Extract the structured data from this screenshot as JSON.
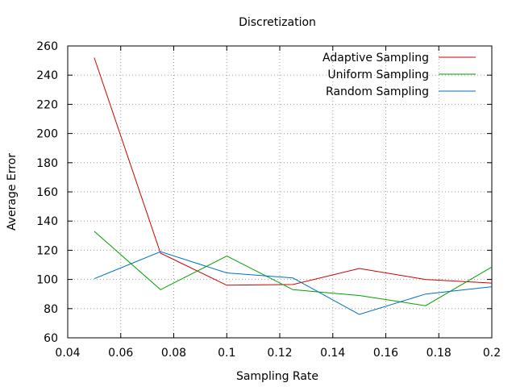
{
  "chart_data": {
    "type": "line",
    "title": "Discretization",
    "xlabel": "Sampling Rate",
    "ylabel": "Average Error",
    "xlim": [
      0.04,
      0.2
    ],
    "ylim": [
      60,
      260
    ],
    "xticks": [
      0.04,
      0.06,
      0.08,
      0.1,
      0.12,
      0.14,
      0.16,
      0.18,
      0.2
    ],
    "xtick_labels": [
      "0.04",
      "0.06",
      "0.08",
      "0.1",
      "0.12",
      "0.14",
      "0.16",
      "0.18",
      "0.2"
    ],
    "yticks": [
      60,
      80,
      100,
      120,
      140,
      160,
      180,
      200,
      220,
      240,
      260
    ],
    "ytick_labels": [
      "60",
      "80",
      "100",
      "120",
      "140",
      "160",
      "180",
      "200",
      "220",
      "240",
      "260"
    ],
    "grid": true,
    "legend_position": "top-right",
    "x": [
      0.05,
      0.075,
      0.1,
      0.125,
      0.15,
      0.175,
      0.2
    ],
    "series": [
      {
        "name": "Adaptive Sampling",
        "color": "#cc0000",
        "values": [
          252,
          118,
          96,
          96.5,
          107.5,
          100,
          97.5
        ]
      },
      {
        "name": "Uniform Sampling",
        "color": "#00a000",
        "values": [
          133,
          93,
          116,
          93,
          89,
          82,
          108.5
        ]
      },
      {
        "name": "Random Sampling",
        "color": "#0070c0",
        "values": [
          100.5,
          119,
          104.5,
          101,
          76,
          90,
          95
        ]
      }
    ]
  }
}
